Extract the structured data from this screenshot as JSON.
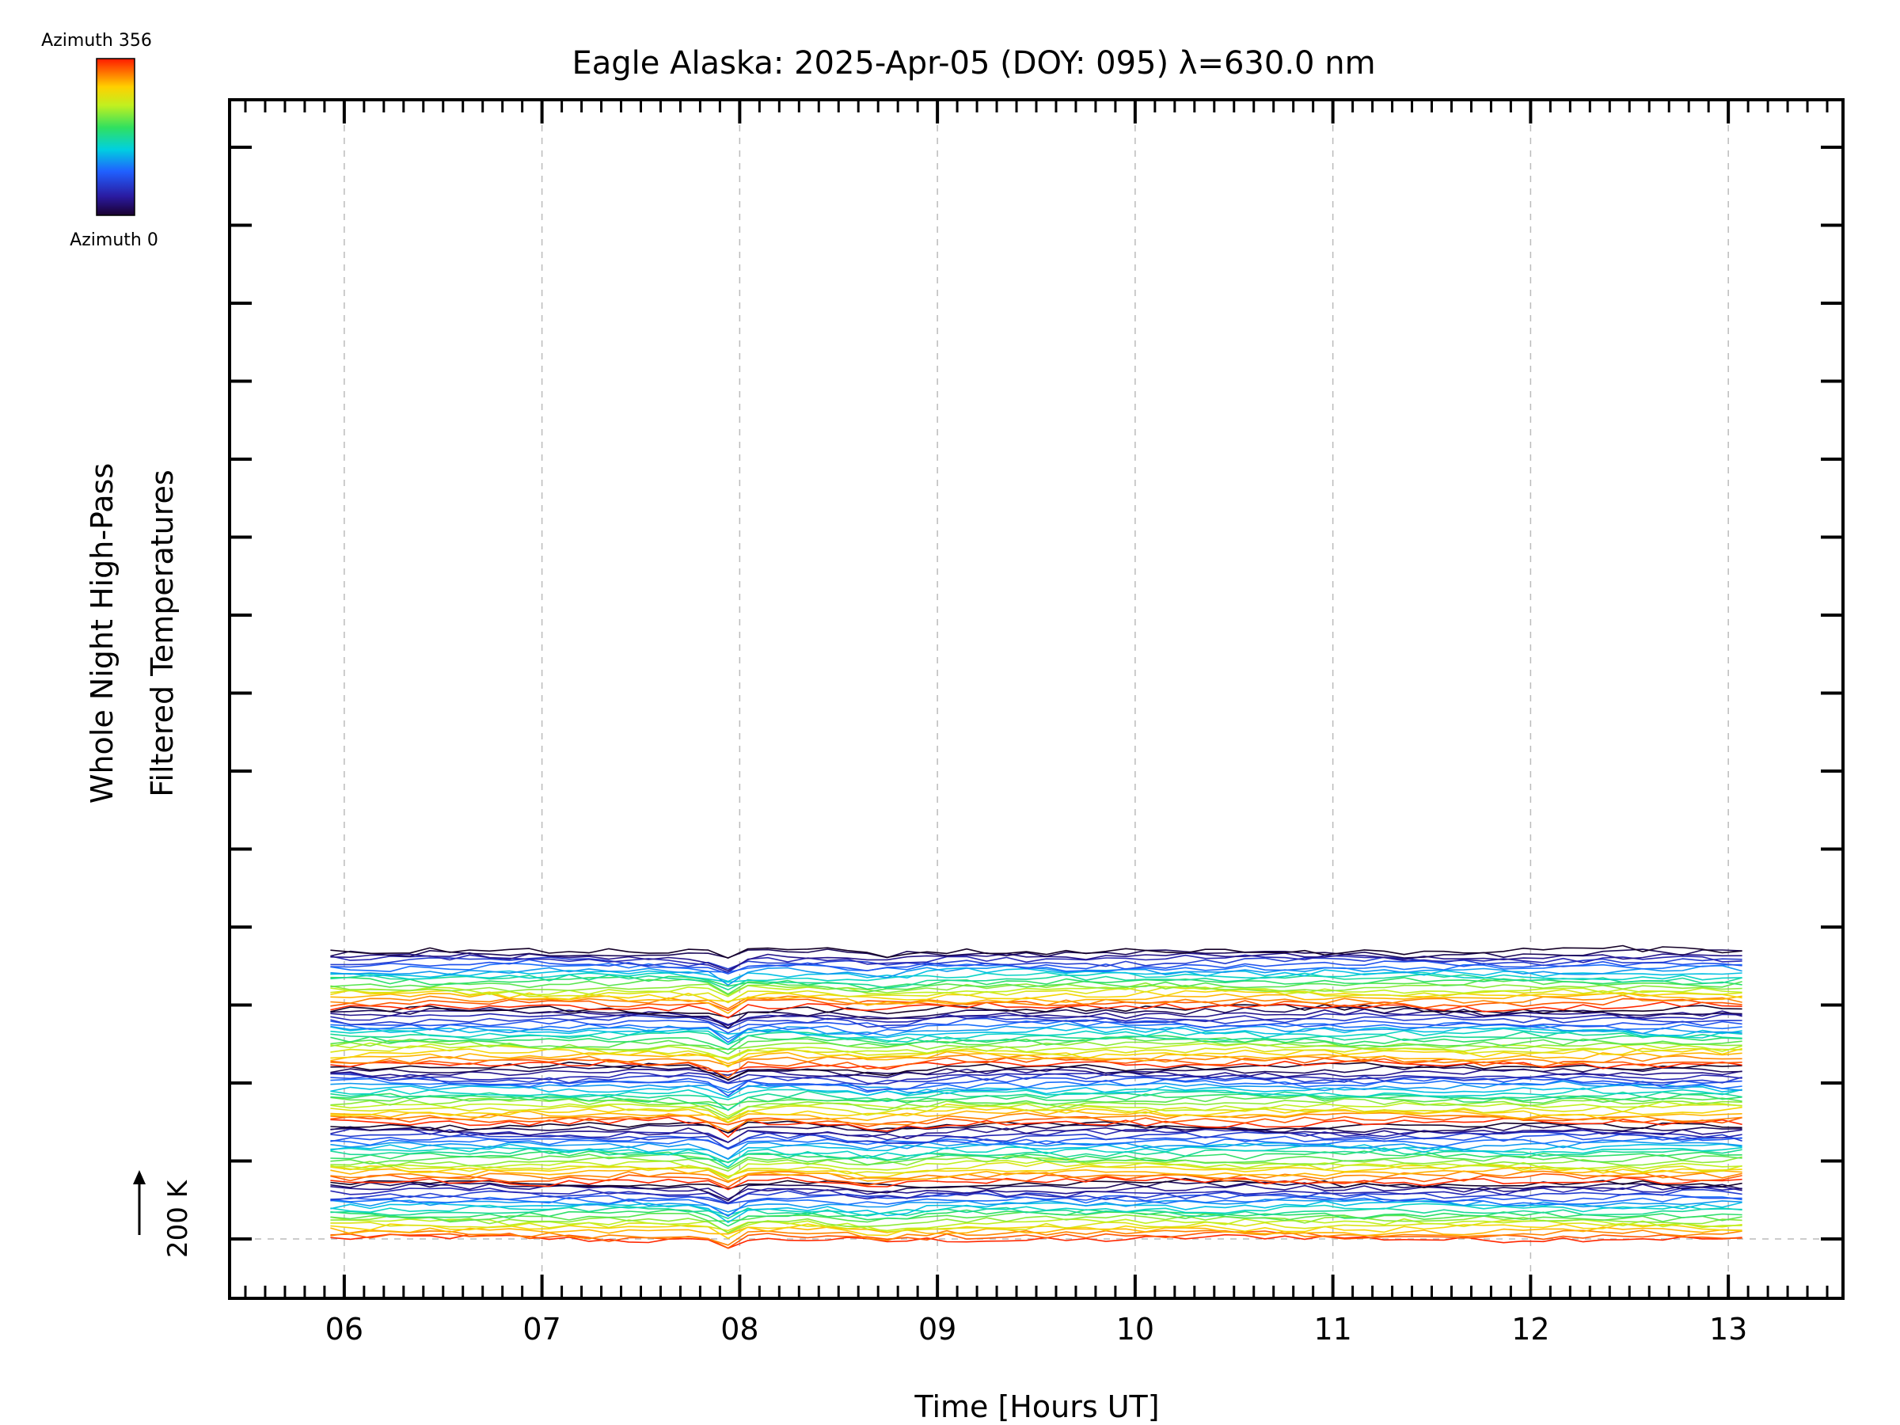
{
  "chart_data": {
    "type": "line",
    "title": "Eagle Alaska: 2025-Apr-05 (DOY: 095) λ=630.0 nm",
    "xlabel": "Time [Hours UT]",
    "ylabel_line1": "Whole Night High-Pass",
    "ylabel_line2": "Filtered Temperatures",
    "xlim": [
      5.42,
      13.58
    ],
    "x_ticks": [
      {
        "value": 6,
        "label": "06"
      },
      {
        "value": 7,
        "label": "07"
      },
      {
        "value": 8,
        "label": "08"
      },
      {
        "value": 9,
        "label": "09"
      },
      {
        "value": 10,
        "label": "10"
      },
      {
        "value": 11,
        "label": "11"
      },
      {
        "value": 12,
        "label": "12"
      },
      {
        "value": 13,
        "label": "13"
      }
    ],
    "x_range_data": [
      5.93,
      13.07
    ],
    "n_points": 72,
    "n_series": 105,
    "series_offset_K": 10,
    "scale_bar_label": "200 K",
    "scale_bar_value_K": 200,
    "colorbar": {
      "top_label": "Azimuth 356",
      "bottom_label": "Azimuth 0",
      "min": 0,
      "max": 356,
      "colormap": "rainbow"
    },
    "dip_events": [
      {
        "time": 7.92,
        "depth_K": 55,
        "width_h": 0.06
      },
      {
        "time": 8.72,
        "depth_K": 22,
        "width_h": 0.22
      }
    ],
    "colors": {
      "axis": "#000000",
      "grid": "#bbbbbb",
      "background": "#ffffff"
    }
  }
}
